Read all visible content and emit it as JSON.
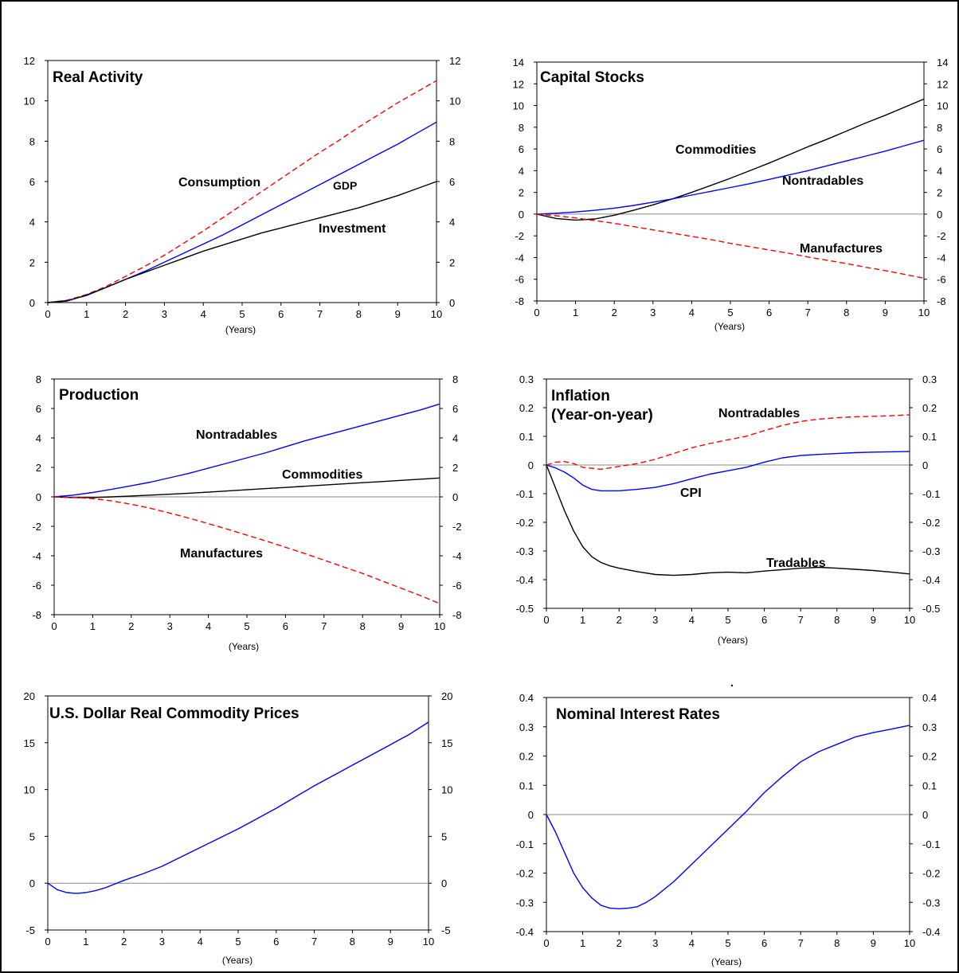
{
  "chart_data": [
    {
      "type": "line",
      "title": "Real Activity",
      "xlabel": "(Years)",
      "xlim": [
        0,
        10
      ],
      "ylim": [
        0,
        12
      ],
      "x_ticks": [
        "0",
        "1",
        "2",
        "3",
        "4",
        "5",
        "6",
        "7",
        "8",
        "9",
        "10"
      ],
      "y_ticks": [
        "12",
        "10",
        "8",
        "6",
        "4",
        "2",
        "0"
      ],
      "series": [
        {
          "name": "Consumption",
          "color": "#ff0000",
          "style": "dashed",
          "x": [
            0,
            0.5,
            1,
            1.5,
            2,
            2.5,
            3,
            3.5,
            4,
            4.5,
            5,
            5.5,
            6,
            6.5,
            7,
            7.5,
            8,
            8.5,
            9,
            9.5,
            10
          ],
          "values": [
            0,
            0.12,
            0.4,
            0.8,
            1.3,
            1.8,
            2.35,
            2.95,
            3.55,
            4.2,
            4.85,
            5.5,
            6.15,
            6.8,
            7.45,
            8.05,
            8.7,
            9.3,
            9.9,
            10.45,
            11.0
          ]
        },
        {
          "name": "GDP",
          "color": "#0000ff",
          "style": "solid",
          "x": [
            0,
            0.5,
            1,
            1.5,
            2,
            2.5,
            3,
            3.5,
            4,
            4.5,
            5,
            5.5,
            6,
            6.5,
            7,
            7.5,
            8,
            8.5,
            9,
            9.5,
            10
          ],
          "values": [
            0,
            0.1,
            0.35,
            0.75,
            1.15,
            1.55,
            2.0,
            2.45,
            2.9,
            3.35,
            3.85,
            4.35,
            4.85,
            5.35,
            5.85,
            6.35,
            6.85,
            7.35,
            7.85,
            8.4,
            8.95
          ]
        },
        {
          "name": "Investment",
          "color": "#000000",
          "style": "solid",
          "x": [
            0,
            0.5,
            1,
            1.5,
            2,
            2.5,
            3,
            3.5,
            4,
            4.5,
            5,
            5.5,
            6,
            6.5,
            7,
            7.5,
            8,
            8.5,
            9,
            9.5,
            10
          ],
          "values": [
            0,
            0.08,
            0.38,
            0.75,
            1.15,
            1.5,
            1.85,
            2.2,
            2.55,
            2.85,
            3.15,
            3.45,
            3.7,
            3.95,
            4.2,
            4.45,
            4.7,
            5.0,
            5.3,
            5.65,
            6.0
          ]
        }
      ],
      "annotations": [
        "Consumption",
        "GDP",
        "Investment"
      ]
    },
    {
      "type": "line",
      "title": "Capital Stocks",
      "xlabel": "(Years)",
      "xlim": [
        0,
        10
      ],
      "ylim": [
        -8,
        14
      ],
      "x_ticks": [
        "0",
        "1",
        "2",
        "3",
        "4",
        "5",
        "6",
        "7",
        "8",
        "9",
        "10"
      ],
      "y_ticks": [
        "14",
        "12",
        "10",
        "8",
        "6",
        "4",
        "2",
        "0",
        "-2",
        "-4",
        "-6",
        "-8"
      ],
      "series": [
        {
          "name": "Commodities",
          "color": "#000000",
          "style": "solid",
          "x": [
            0,
            0.5,
            1,
            1.5,
            2,
            2.5,
            3,
            3.5,
            4,
            4.5,
            5,
            5.5,
            6,
            6.5,
            7,
            7.5,
            8,
            8.5,
            9,
            9.5,
            10
          ],
          "values": [
            0,
            -0.4,
            -0.55,
            -0.45,
            -0.1,
            0.35,
            0.85,
            1.4,
            2.0,
            2.65,
            3.3,
            4.0,
            4.7,
            5.45,
            6.2,
            6.9,
            7.65,
            8.4,
            9.1,
            9.85,
            10.6
          ]
        },
        {
          "name": "Nontradables",
          "color": "#0000ff",
          "style": "solid",
          "x": [
            0,
            0.5,
            1,
            1.5,
            2,
            2.5,
            3,
            3.5,
            4,
            4.5,
            5,
            5.5,
            6,
            6.5,
            7,
            7.5,
            8,
            8.5,
            9,
            9.5,
            10
          ],
          "values": [
            0,
            0.08,
            0.2,
            0.35,
            0.55,
            0.8,
            1.1,
            1.4,
            1.75,
            2.1,
            2.45,
            2.8,
            3.2,
            3.6,
            4.0,
            4.45,
            4.9,
            5.35,
            5.8,
            6.3,
            6.8
          ]
        },
        {
          "name": "Manufactures",
          "color": "#ff0000",
          "style": "dashed",
          "x": [
            0,
            0.5,
            1,
            1.5,
            2,
            2.5,
            3,
            3.5,
            4,
            4.5,
            5,
            5.5,
            6,
            6.5,
            7,
            7.5,
            8,
            8.5,
            9,
            9.5,
            10
          ],
          "values": [
            0,
            -0.15,
            -0.35,
            -0.6,
            -0.85,
            -1.15,
            -1.45,
            -1.75,
            -2.05,
            -2.35,
            -2.7,
            -3.0,
            -3.3,
            -3.6,
            -3.95,
            -4.25,
            -4.55,
            -4.9,
            -5.2,
            -5.55,
            -5.9
          ]
        }
      ],
      "annotations": [
        "Commodities",
        "Nontradables",
        "Manufactures"
      ]
    },
    {
      "type": "line",
      "title": "Production",
      "xlabel": "(Years)",
      "xlim": [
        0,
        10
      ],
      "ylim": [
        -8,
        8
      ],
      "x_ticks": [
        "0",
        "1",
        "2",
        "3",
        "4",
        "5",
        "6",
        "7",
        "8",
        "9",
        "10"
      ],
      "y_ticks": [
        "8",
        "6",
        "4",
        "2",
        "0",
        "-2",
        "-4",
        "-6",
        "-8"
      ],
      "series": [
        {
          "name": "Nontradables",
          "color": "#0000ff",
          "style": "solid",
          "x": [
            0,
            0.5,
            1,
            1.5,
            2,
            2.5,
            3,
            3.5,
            4,
            4.5,
            5,
            5.5,
            6,
            6.5,
            7,
            7.5,
            8,
            8.5,
            9,
            9.5,
            10
          ],
          "values": [
            0,
            0.12,
            0.3,
            0.52,
            0.75,
            1.0,
            1.3,
            1.6,
            1.95,
            2.3,
            2.65,
            3.0,
            3.4,
            3.8,
            4.15,
            4.5,
            4.85,
            5.2,
            5.55,
            5.9,
            6.3
          ]
        },
        {
          "name": "Commodities",
          "color": "#000000",
          "style": "solid",
          "x": [
            0,
            0.5,
            1,
            1.5,
            2,
            2.5,
            3,
            3.5,
            4,
            4.5,
            5,
            5.5,
            6,
            6.5,
            7,
            7.5,
            8,
            8.5,
            9,
            9.5,
            10
          ],
          "values": [
            0,
            -0.05,
            -0.05,
            0.0,
            0.06,
            0.12,
            0.18,
            0.25,
            0.32,
            0.4,
            0.48,
            0.56,
            0.64,
            0.72,
            0.8,
            0.88,
            0.96,
            1.04,
            1.12,
            1.2,
            1.28
          ]
        },
        {
          "name": "Manufactures",
          "color": "#ff0000",
          "style": "dashed",
          "x": [
            0,
            0.5,
            1,
            1.5,
            2,
            2.5,
            3,
            3.5,
            4,
            4.5,
            5,
            5.5,
            6,
            6.5,
            7,
            7.5,
            8,
            8.5,
            9,
            9.5,
            10
          ],
          "values": [
            0,
            -0.03,
            -0.12,
            -0.28,
            -0.5,
            -0.78,
            -1.1,
            -1.45,
            -1.82,
            -2.2,
            -2.6,
            -3.0,
            -3.42,
            -3.85,
            -4.3,
            -4.75,
            -5.2,
            -5.7,
            -6.2,
            -6.7,
            -7.25
          ]
        }
      ],
      "annotations": [
        "Nontradables",
        "Commodities",
        "Manufactures"
      ]
    },
    {
      "type": "line",
      "title": "Inflation",
      "subtitle": "(Year-on-year)",
      "xlabel": "(Years)",
      "xlim": [
        0,
        10
      ],
      "ylim": [
        -0.5,
        0.3
      ],
      "x_ticks": [
        "0",
        "1",
        "2",
        "3",
        "4",
        "5",
        "6",
        "7",
        "8",
        "9",
        "10"
      ],
      "y_ticks": [
        "0.3",
        "0.2",
        "0.1",
        "0",
        "-0.1",
        "-0.2",
        "-0.3",
        "-0.4",
        "-0.5"
      ],
      "series": [
        {
          "name": "Nontradables",
          "color": "#ff0000",
          "style": "dashed",
          "x": [
            0,
            0.25,
            0.5,
            0.75,
            1,
            1.5,
            2,
            2.5,
            3,
            3.5,
            4,
            4.5,
            5,
            5.5,
            6,
            6.5,
            7,
            7.5,
            8,
            8.5,
            9,
            9.5,
            10
          ],
          "values": [
            0,
            0.01,
            0.012,
            0.005,
            -0.008,
            -0.015,
            -0.005,
            0.005,
            0.02,
            0.04,
            0.06,
            0.075,
            0.088,
            0.1,
            0.12,
            0.138,
            0.152,
            0.16,
            0.165,
            0.168,
            0.17,
            0.172,
            0.175
          ]
        },
        {
          "name": "CPI",
          "color": "#0000ff",
          "style": "solid",
          "x": [
            0,
            0.25,
            0.5,
            0.75,
            1,
            1.25,
            1.5,
            2,
            2.5,
            3,
            3.5,
            4,
            4.5,
            5,
            5.5,
            6,
            6.5,
            7,
            7.5,
            8,
            8.5,
            9,
            9.5,
            10
          ],
          "values": [
            0,
            -0.01,
            -0.025,
            -0.045,
            -0.07,
            -0.085,
            -0.09,
            -0.09,
            -0.085,
            -0.078,
            -0.065,
            -0.048,
            -0.032,
            -0.02,
            -0.008,
            0.01,
            0.025,
            0.033,
            0.037,
            0.04,
            0.043,
            0.045,
            0.046,
            0.047
          ]
        },
        {
          "name": "Tradables",
          "color": "#000000",
          "style": "solid",
          "x": [
            0,
            0.25,
            0.5,
            0.75,
            1,
            1.25,
            1.5,
            1.75,
            2,
            2.5,
            3,
            3.5,
            4,
            4.5,
            5,
            5.5,
            6,
            6.5,
            7,
            7.5,
            8,
            8.5,
            9,
            9.5,
            10
          ],
          "values": [
            0,
            -0.08,
            -0.16,
            -0.23,
            -0.285,
            -0.32,
            -0.34,
            -0.352,
            -0.36,
            -0.372,
            -0.382,
            -0.385,
            -0.382,
            -0.376,
            -0.374,
            -0.376,
            -0.37,
            -0.365,
            -0.36,
            -0.357,
            -0.36,
            -0.364,
            -0.368,
            -0.374,
            -0.38
          ]
        }
      ],
      "annotations": [
        "Nontradables",
        "CPI",
        "Tradables"
      ]
    },
    {
      "type": "line",
      "title": "U.S. Dollar Real Commodity Prices",
      "xlabel": "(Years)",
      "xlim": [
        0,
        10
      ],
      "ylim": [
        -5,
        20
      ],
      "x_ticks": [
        "0",
        "1",
        "2",
        "3",
        "4",
        "5",
        "6",
        "7",
        "8",
        "9",
        "10"
      ],
      "y_ticks": [
        "20",
        "15",
        "10",
        "5",
        "0",
        "-5"
      ],
      "series": [
        {
          "name": "",
          "color": "#0000ff",
          "style": "solid",
          "x": [
            0,
            0.25,
            0.5,
            0.75,
            1,
            1.25,
            1.5,
            2,
            2.5,
            3,
            3.5,
            4,
            4.5,
            5,
            5.5,
            6,
            6.5,
            7,
            7.5,
            8,
            8.5,
            9,
            9.5,
            10
          ],
          "values": [
            0,
            -0.7,
            -1.0,
            -1.1,
            -1.0,
            -0.8,
            -0.5,
            0.3,
            1.0,
            1.8,
            2.8,
            3.8,
            4.8,
            5.8,
            6.9,
            8.0,
            9.2,
            10.4,
            11.5,
            12.6,
            13.7,
            14.8,
            15.9,
            17.2
          ]
        }
      ]
    },
    {
      "type": "line",
      "title": "Nominal Interest Rates",
      "xlabel": "(Years)",
      "xlim": [
        0,
        10
      ],
      "ylim": [
        -0.4,
        0.4
      ],
      "x_ticks": [
        "0",
        "1",
        "2",
        "3",
        "4",
        "5",
        "6",
        "7",
        "8",
        "9",
        "10"
      ],
      "y_ticks": [
        "0.4",
        "0.3",
        "0.2",
        "0.1",
        "0",
        "-0.1",
        "-0.2",
        "-0.3",
        "-0.4"
      ],
      "series": [
        {
          "name": "",
          "color": "#0000ff",
          "style": "solid",
          "x": [
            0,
            0.25,
            0.5,
            0.75,
            1,
            1.25,
            1.5,
            1.75,
            2,
            2.25,
            2.5,
            2.75,
            3,
            3.5,
            4,
            4.5,
            5,
            5.5,
            6,
            6.5,
            7,
            7.5,
            8,
            8.5,
            9,
            9.5,
            10
          ],
          "values": [
            0,
            -0.06,
            -0.13,
            -0.2,
            -0.25,
            -0.285,
            -0.31,
            -0.32,
            -0.322,
            -0.32,
            -0.315,
            -0.3,
            -0.28,
            -0.23,
            -0.17,
            -0.11,
            -0.05,
            0.01,
            0.075,
            0.13,
            0.18,
            0.215,
            0.24,
            0.265,
            0.28,
            0.292,
            0.305
          ]
        }
      ]
    }
  ]
}
